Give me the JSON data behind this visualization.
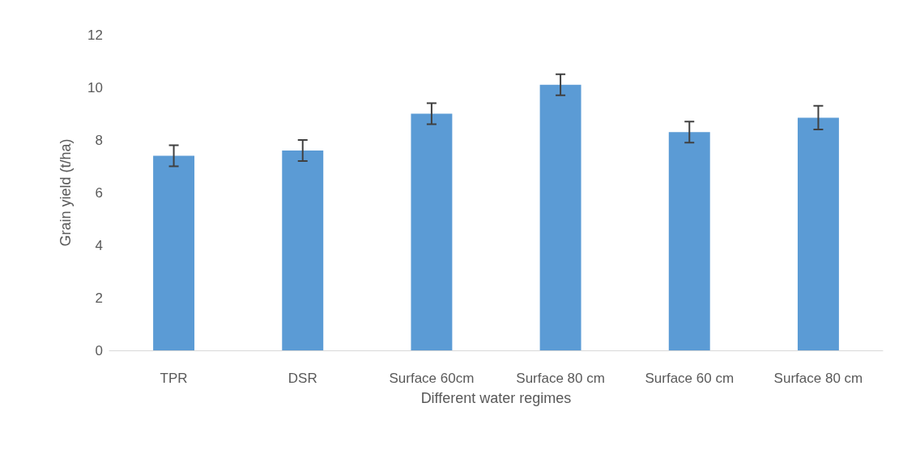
{
  "chart_data": {
    "type": "bar",
    "xlabel": "Different water regimes",
    "ylabel": "Grain yield (t/ha)",
    "categories": [
      "TPR",
      "DSR",
      "Surface 60cm",
      "Surface 80 cm",
      "Surface 60 cm",
      "Surface 80 cm"
    ],
    "values": [
      7.4,
      7.6,
      9.0,
      10.1,
      8.3,
      8.85
    ],
    "errors": [
      0.4,
      0.4,
      0.4,
      0.4,
      0.4,
      0.45
    ],
    "color": "#5b9bd5",
    "ylim": [
      0,
      12
    ],
    "yticks": [
      0,
      2,
      4,
      6,
      8,
      10,
      12
    ],
    "grid": false
  }
}
